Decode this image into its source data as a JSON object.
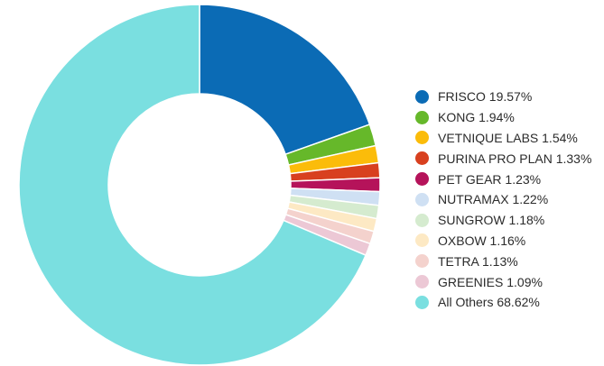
{
  "chart_data": {
    "type": "donut",
    "slices": [
      {
        "label": "FRISCO",
        "value": 19.57,
        "display": "FRISCO 19.57%",
        "color": "#0b6bb5"
      },
      {
        "label": "KONG",
        "value": 1.94,
        "display": "KONG 1.94%",
        "color": "#66b82a"
      },
      {
        "label": "VETNIQUE LABS",
        "value": 1.54,
        "display": "VETNIQUE LABS 1.54%",
        "color": "#fbbc0a"
      },
      {
        "label": "PURINA PRO PLAN",
        "value": 1.33,
        "display": "PURINA PRO PLAN 1.33%",
        "color": "#d8401f"
      },
      {
        "label": "PET GEAR",
        "value": 1.23,
        "display": "PET GEAR 1.23%",
        "color": "#b5135a"
      },
      {
        "label": "NUTRAMAX",
        "value": 1.22,
        "display": "NUTRAMAX 1.22%",
        "color": "#cfe0f3"
      },
      {
        "label": "SUNGROW",
        "value": 1.18,
        "display": "SUNGROW 1.18%",
        "color": "#d5ebcf"
      },
      {
        "label": "OXBOW",
        "value": 1.16,
        "display": "OXBOW 1.16%",
        "color": "#fde9c4"
      },
      {
        "label": "TETRA",
        "value": 1.13,
        "display": "TETRA 1.13%",
        "color": "#f4d2cd"
      },
      {
        "label": "GREENIES",
        "value": 1.09,
        "display": "GREENIES 1.09%",
        "color": "#ecc8d5"
      },
      {
        "label": "All Others",
        "value": 68.62,
        "display": "All Others 68.62%",
        "color": "#7adfe0"
      }
    ],
    "legend_position": "right"
  }
}
